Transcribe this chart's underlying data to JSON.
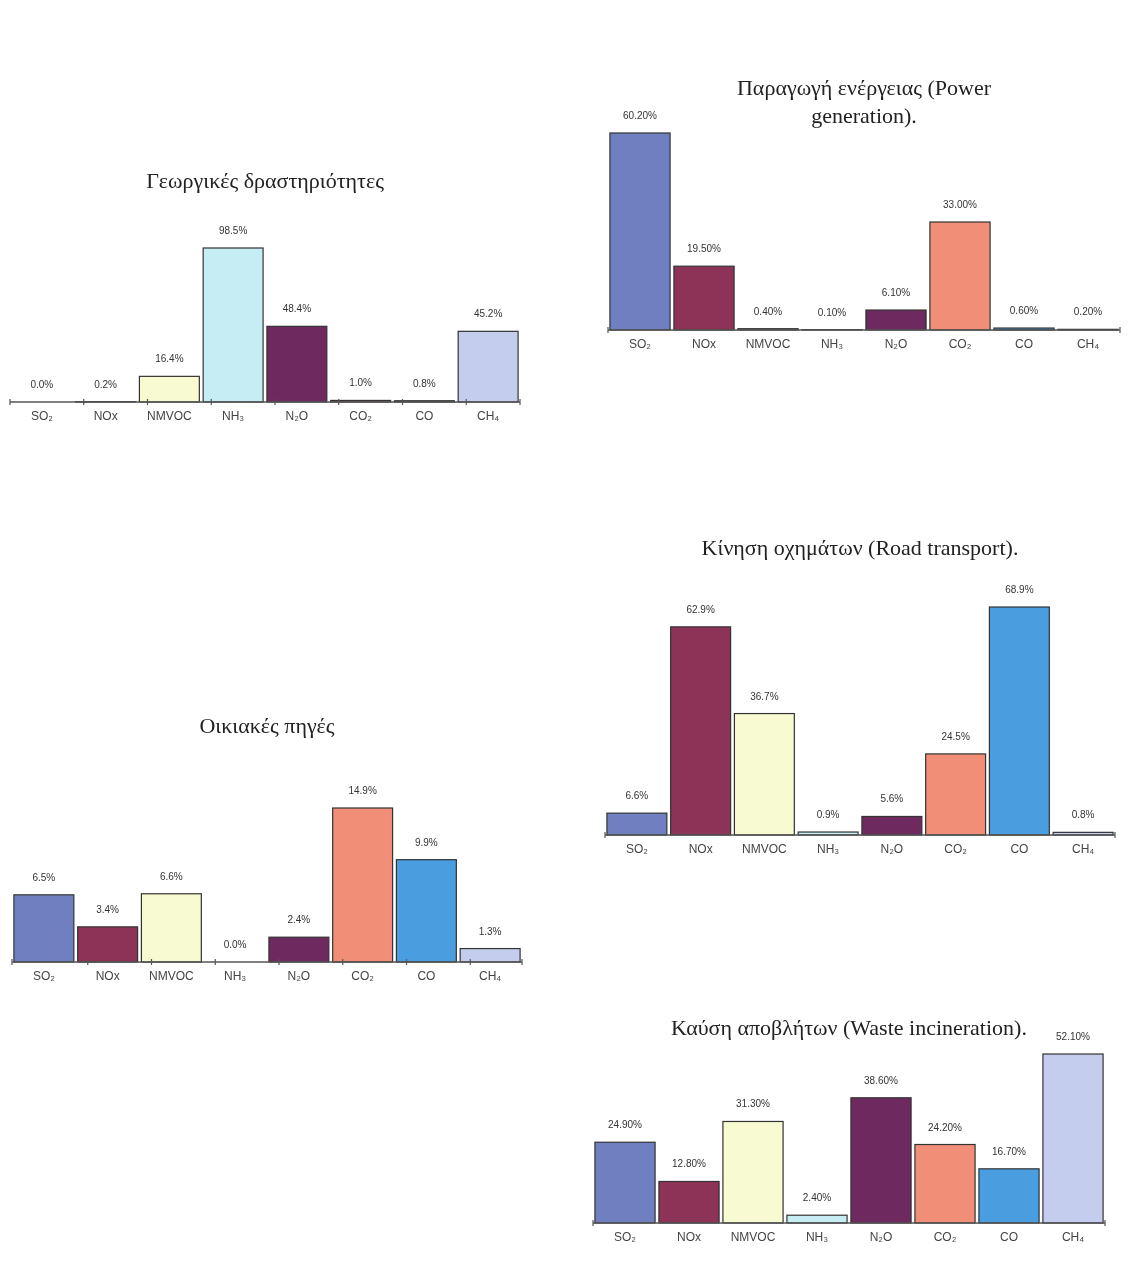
{
  "chart_data": [
    {
      "type": "bar",
      "title": "Γεωργικές δραστηριότητες",
      "categories": [
        "SO₂",
        "NOx",
        "NMVOC",
        "NH₃",
        "N₂O",
        "CO₂",
        "CO",
        "CH₄"
      ],
      "values": [
        0.0,
        0.2,
        16.4,
        98.5,
        48.4,
        1.0,
        0.8,
        45.2
      ],
      "value_labels": [
        "0.0%",
        "0.2%",
        "16.4%",
        "98.5%",
        "48.4%",
        "1.0%",
        "0.8%",
        "45.2%"
      ],
      "colors": [
        "#6f7fc0",
        "#8e3358",
        "#f8fad2",
        "#c6ecf4",
        "#6e2a5e",
        "#f08e78",
        "#4a9ee0",
        "#c4cdee"
      ]
    },
    {
      "type": "bar",
      "title": "Παραγωγή ενέργειας (Power generation).",
      "categories": [
        "SO₂",
        "NOx",
        "NMVOC",
        "NH₃",
        "N₂O",
        "CO₂",
        "CO",
        "CH₄"
      ],
      "values": [
        60.2,
        19.5,
        0.4,
        0.1,
        6.1,
        33.0,
        0.6,
        0.2
      ],
      "value_labels": [
        "60.20%",
        "19.50%",
        "0.40%",
        "0.10%",
        "6.10%",
        "33.00%",
        "0.60%",
        "0.20%"
      ],
      "colors": [
        "#6f7fc0",
        "#8e3358",
        "#f8fad2",
        "#c6ecf4",
        "#6e2a5e",
        "#f08e78",
        "#4a9ee0",
        "#c4cdee"
      ]
    },
    {
      "type": "bar",
      "title": "Κίνηση οχημάτων (Road transport).",
      "categories": [
        "SO₂",
        "NOx",
        "NMVOC",
        "NH₃",
        "N₂O",
        "CO₂",
        "CO",
        "CH₄"
      ],
      "values": [
        6.6,
        62.9,
        36.7,
        0.9,
        5.6,
        24.5,
        68.9,
        0.8
      ],
      "value_labels": [
        "6.6%",
        "62.9%",
        "36.7%",
        "0.9%",
        "5.6%",
        "24.5%",
        "68.9%",
        "0.8%"
      ],
      "colors": [
        "#6f7fc0",
        "#8e3358",
        "#f8fad2",
        "#c6ecf4",
        "#6e2a5e",
        "#f08e78",
        "#4a9ee0",
        "#c4cdee"
      ]
    },
    {
      "type": "bar",
      "title": "Οικιακές πηγές",
      "categories": [
        "SO₂",
        "NOx",
        "NMVOC",
        "NH₃",
        "N₂O",
        "CO₂",
        "CO",
        "CH₄"
      ],
      "values": [
        6.5,
        3.4,
        6.6,
        0.0,
        2.4,
        14.9,
        9.9,
        1.3
      ],
      "value_labels": [
        "6.5%",
        "3.4%",
        "6.6%",
        "0.0%",
        "2.4%",
        "14.9%",
        "9.9%",
        "1.3%"
      ],
      "colors": [
        "#6f7fc0",
        "#8e3358",
        "#f8fad2",
        "#c6ecf4",
        "#6e2a5e",
        "#f08e78",
        "#4a9ee0",
        "#c4cdee"
      ]
    },
    {
      "type": "bar",
      "title": "Καύση αποβλήτων (Waste incineration).",
      "categories": [
        "SO₂",
        "NOx",
        "NMVOC",
        "NH₃",
        "N₂O",
        "CO₂",
        "CO",
        "CH₄"
      ],
      "values": [
        24.9,
        12.8,
        31.3,
        2.4,
        38.6,
        24.2,
        16.7,
        52.1
      ],
      "value_labels": [
        "24.90%",
        "12.80%",
        "31.30%",
        "2.40%",
        "38.60%",
        "24.20%",
        "16.70%",
        "52.10%"
      ],
      "colors": [
        "#6f7fc0",
        "#8e3358",
        "#f8fad2",
        "#c6ecf4",
        "#6e2a5e",
        "#f08e78",
        "#4a9ee0",
        "#c4cdee"
      ]
    }
  ]
}
